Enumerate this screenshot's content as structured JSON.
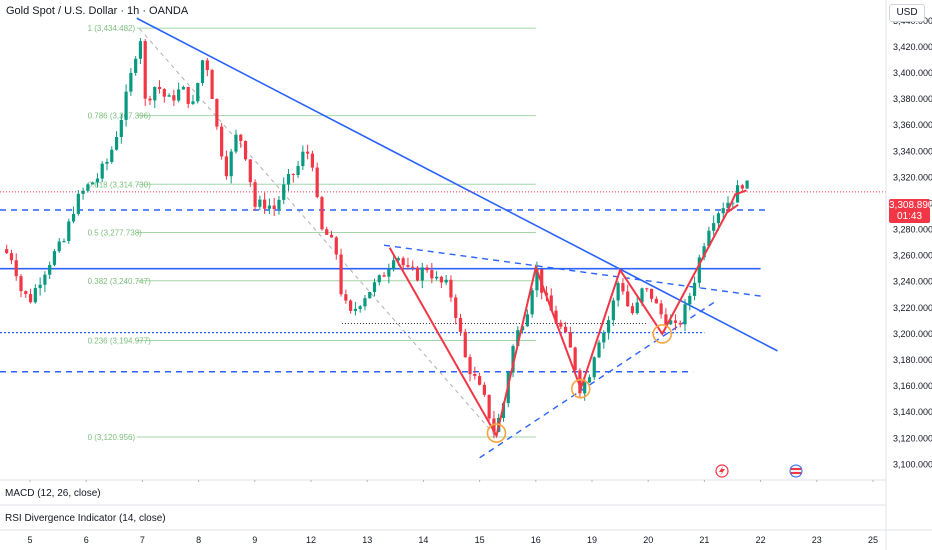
{
  "header": {
    "title": "Gold Spot / U.S. Dollar · 1h · OANDA",
    "currency": "USD"
  },
  "last_price": {
    "value": "3,308.890",
    "countdown": "01:43"
  },
  "indicators": [
    {
      "label": "MACD (12, 26, close)"
    },
    {
      "label": "RSI Divergence Indicator (14, close)"
    }
  ],
  "colors": {
    "up": "#089981",
    "down": "#f23645",
    "trend": "#2962ff",
    "pattern": "#f23645",
    "fib": "#a5d6a7",
    "circle": "#f7a440"
  },
  "chart_data": {
    "type": "candlestick",
    "yticks": [
      3100,
      3120,
      3140,
      3160,
      3180,
      3200,
      3220,
      3240,
      3260,
      3280,
      3300,
      3320,
      3340,
      3360,
      3380,
      3400,
      3420,
      3440
    ],
    "ytick_labels": [
      "3,100.000",
      "3,120.000",
      "3,140.000",
      "3,160.000",
      "3,180.000",
      "3,200.000",
      "3,220.000",
      "3,240.000",
      "3,260.000",
      "3,280.000",
      "3,300.000",
      "3,320.000",
      "3,340.000",
      "3,360.000",
      "3,380.000",
      "3,400.000",
      "3,420.000",
      "3,440.000"
    ],
    "ylim": [
      3088,
      3456
    ],
    "xticks": [
      {
        "label": "5",
        "day": 5
      },
      {
        "label": "6",
        "day": 6
      },
      {
        "label": "7",
        "day": 7
      },
      {
        "label": "8",
        "day": 8
      },
      {
        "label": "9",
        "day": 9
      },
      {
        "label": "12",
        "day": 10
      },
      {
        "label": "13",
        "day": 11
      },
      {
        "label": "14",
        "day": 12
      },
      {
        "label": "15",
        "day": 13
      },
      {
        "label": "16",
        "day": 14
      },
      {
        "label": "19",
        "day": 15
      },
      {
        "label": "20",
        "day": 16
      },
      {
        "label": "21",
        "day": 17
      },
      {
        "label": "22",
        "day": 18
      },
      {
        "label": "23",
        "day": 19
      },
      {
        "label": "25",
        "day": 20
      }
    ],
    "fib_levels": [
      {
        "label": "1 (3,434.482)",
        "price": 3434.482
      },
      {
        "label": "0.786 (3,367.396)",
        "price": 3367.396
      },
      {
        "label": "0.618 (3,314.730)",
        "price": 3314.73
      },
      {
        "label": "0.5 (3,277.738)",
        "price": 3277.738
      },
      {
        "label": "0.382 (3,240.747)",
        "price": 3240.747
      },
      {
        "label": "0.236 (3,194.977)",
        "price": 3194.977
      },
      {
        "label": "0 (3,120.956)",
        "price": 3120.956
      }
    ],
    "close_path": [
      [
        4.5,
        3265
      ],
      [
        4.7,
        3258
      ],
      [
        4.85,
        3232
      ],
      [
        5.0,
        3226
      ],
      [
        5.2,
        3244
      ],
      [
        5.4,
        3260
      ],
      [
        5.6,
        3270
      ],
      [
        5.8,
        3300
      ],
      [
        6.0,
        3312
      ],
      [
        6.2,
        3320
      ],
      [
        6.4,
        3334
      ],
      [
        6.6,
        3362
      ],
      [
        6.75,
        3388
      ],
      [
        6.9,
        3420
      ],
      [
        6.95,
        3436
      ],
      [
        7.05,
        3378
      ],
      [
        7.25,
        3392
      ],
      [
        7.45,
        3378
      ],
      [
        7.7,
        3388
      ],
      [
        7.9,
        3375
      ],
      [
        8.1,
        3416
      ],
      [
        8.2,
        3396
      ],
      [
        8.35,
        3350
      ],
      [
        8.5,
        3325
      ],
      [
        8.7,
        3356
      ],
      [
        8.85,
        3336
      ],
      [
        9.0,
        3298
      ],
      [
        9.2,
        3300
      ],
      [
        9.35,
        3296
      ],
      [
        9.55,
        3315
      ],
      [
        9.75,
        3326
      ],
      [
        9.9,
        3342
      ],
      [
        10.05,
        3330
      ],
      [
        10.15,
        3280
      ],
      [
        10.3,
        3275
      ],
      [
        10.45,
        3262
      ],
      [
        10.55,
        3228
      ],
      [
        10.7,
        3214
      ],
      [
        10.85,
        3224
      ],
      [
        11.0,
        3232
      ],
      [
        11.2,
        3240
      ],
      [
        11.35,
        3250
      ],
      [
        11.5,
        3264
      ],
      [
        11.7,
        3248
      ],
      [
        11.9,
        3245
      ],
      [
        12.05,
        3252
      ],
      [
        12.25,
        3240
      ],
      [
        12.45,
        3236
      ],
      [
        12.6,
        3212
      ],
      [
        12.75,
        3180
      ],
      [
        12.95,
        3162
      ],
      [
        13.1,
        3148
      ],
      [
        13.25,
        3126
      ],
      [
        13.4,
        3140
      ],
      [
        13.55,
        3184
      ],
      [
        13.7,
        3204
      ],
      [
        13.85,
        3220
      ],
      [
        14.0,
        3251
      ],
      [
        14.15,
        3228
      ],
      [
        14.3,
        3215
      ],
      [
        14.5,
        3200
      ],
      [
        14.65,
        3184
      ],
      [
        14.8,
        3156
      ],
      [
        14.95,
        3170
      ],
      [
        15.1,
        3196
      ],
      [
        15.25,
        3204
      ],
      [
        15.4,
        3227
      ],
      [
        15.5,
        3246
      ],
      [
        15.6,
        3224
      ],
      [
        15.75,
        3214
      ],
      [
        15.9,
        3234
      ],
      [
        16.05,
        3230
      ],
      [
        16.2,
        3216
      ],
      [
        16.35,
        3211
      ],
      [
        16.5,
        3203
      ],
      [
        16.65,
        3218
      ],
      [
        16.8,
        3238
      ],
      [
        16.95,
        3265
      ],
      [
        17.1,
        3286
      ],
      [
        17.3,
        3298
      ],
      [
        17.5,
        3304
      ],
      [
        17.7,
        3318
      ],
      [
        17.8,
        3309
      ]
    ],
    "current_price": 3308.89
  }
}
